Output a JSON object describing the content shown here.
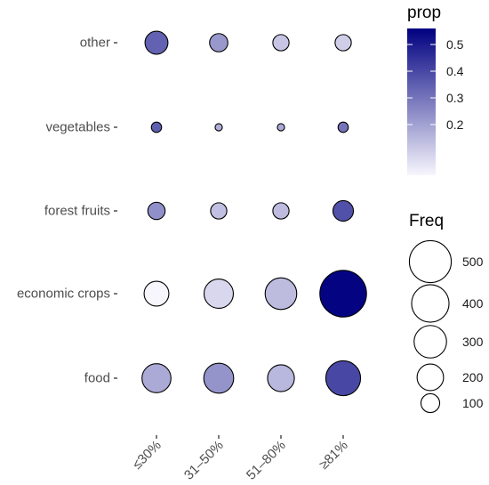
{
  "chart_data": {
    "type": "scatter",
    "title": "",
    "xlabel": "",
    "ylabel": "",
    "x_categories": [
      "≤30%",
      "31–50%",
      "51–80%",
      "≥81%"
    ],
    "y_categories": [
      "other",
      "vegetables",
      "forest fruits",
      "economic crops",
      "food"
    ],
    "points": [
      {
        "y": "other",
        "x": "≤30%",
        "freq": 150,
        "prop": 0.34
      },
      {
        "y": "other",
        "x": "31–50%",
        "freq": 95,
        "prop": 0.22
      },
      {
        "y": "other",
        "x": "51–80%",
        "freq": 75,
        "prop": 0.12
      },
      {
        "y": "other",
        "x": "≥81%",
        "freq": 75,
        "prop": 0.1
      },
      {
        "y": "vegetables",
        "x": "≤30%",
        "freq": 30,
        "prop": 0.35
      },
      {
        "y": "vegetables",
        "x": "31–50%",
        "freq": 15,
        "prop": 0.17
      },
      {
        "y": "vegetables",
        "x": "51–80%",
        "freq": 15,
        "prop": 0.18
      },
      {
        "y": "vegetables",
        "x": "≥81%",
        "freq": 30,
        "prop": 0.3
      },
      {
        "y": "forest fruits",
        "x": "≤30%",
        "freq": 85,
        "prop": 0.24
      },
      {
        "y": "forest fruits",
        "x": "31–50%",
        "freq": 75,
        "prop": 0.13
      },
      {
        "y": "forest fruits",
        "x": "51–80%",
        "freq": 75,
        "prop": 0.14
      },
      {
        "y": "forest fruits",
        "x": "≥81%",
        "freq": 120,
        "prop": 0.38
      },
      {
        "y": "economic crops",
        "x": "≤30%",
        "freq": 175,
        "prop": 0.01
      },
      {
        "y": "economic crops",
        "x": "31–50%",
        "freq": 245,
        "prop": 0.08
      },
      {
        "y": "economic crops",
        "x": "51–80%",
        "freq": 285,
        "prop": 0.14
      },
      {
        "y": "economic crops",
        "x": "≥81%",
        "freq": 620,
        "prop": 0.55
      },
      {
        "y": "food",
        "x": "≤30%",
        "freq": 240,
        "prop": 0.18
      },
      {
        "y": "food",
        "x": "31–50%",
        "freq": 255,
        "prop": 0.23
      },
      {
        "y": "food",
        "x": "51–80%",
        "freq": 205,
        "prop": 0.15
      },
      {
        "y": "food",
        "x": "≥81%",
        "freq": 345,
        "prop": 0.4
      }
    ],
    "legend_color": {
      "title": "prop",
      "ticks": [
        0.5,
        0.4,
        0.3,
        0.2
      ],
      "range": [
        0.01,
        0.56
      ],
      "low_color": "#f7f6fd",
      "high_color": "#000080"
    },
    "legend_size": {
      "title": "Freq",
      "values": [
        500,
        400,
        300,
        200,
        100
      ]
    },
    "grid": false,
    "legend_position": "right"
  }
}
